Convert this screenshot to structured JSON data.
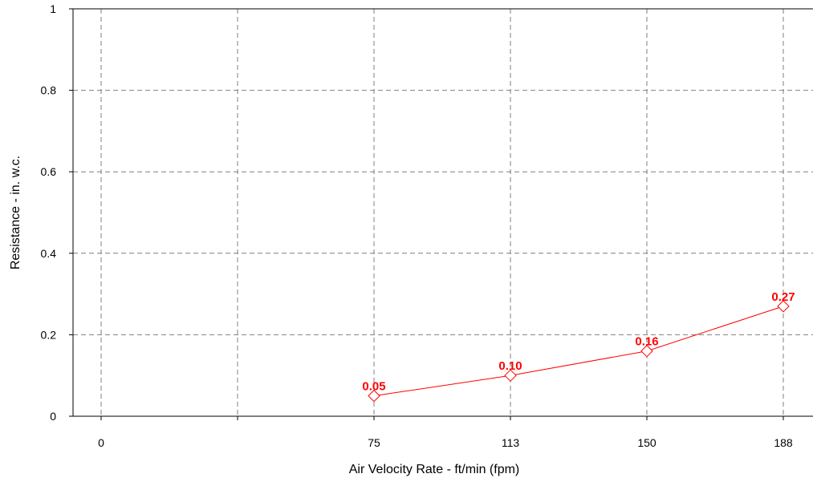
{
  "chart_data": {
    "type": "line",
    "xlabel": "Air Velocity Rate - ft/min (fpm)",
    "ylabel": "Resistance - in. w.c.",
    "x_ticks": [
      "0",
      "",
      "75",
      "113",
      "150",
      "188"
    ],
    "y_ticks": [
      "0",
      "0.2",
      "0.4",
      "0.6",
      "0.8",
      "1"
    ],
    "ylim": [
      0,
      1
    ],
    "grid": true,
    "series": [
      {
        "x": [
          "75",
          "113",
          "150",
          "188"
        ],
        "values": [
          0.05,
          0.1,
          0.16,
          0.27
        ],
        "labels": [
          "0.05",
          "0.10",
          "0.16",
          "0.27"
        ],
        "color": "#ff0000",
        "marker": "diamond"
      }
    ]
  }
}
